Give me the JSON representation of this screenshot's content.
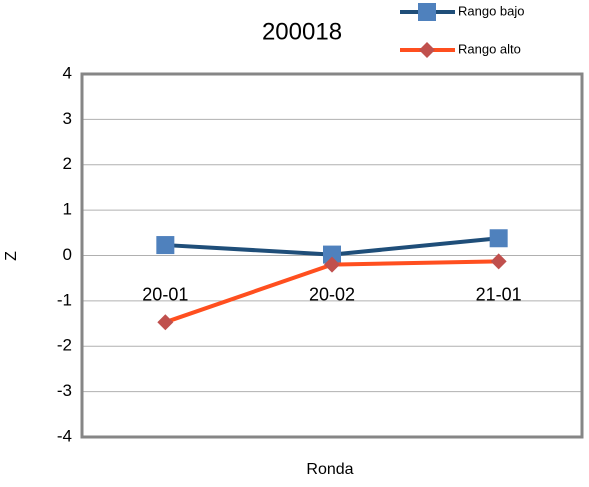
{
  "chart_data": {
    "type": "line",
    "title": "200018",
    "x_label": "Ronda",
    "y_label": "Z",
    "categories": [
      "20-01",
      "20-02",
      "21-01"
    ],
    "series": [
      {
        "name": "Rango bajo",
        "color": "#1f4e79",
        "marker_color": "#4f81bd",
        "marker": "square",
        "values": [
          0.23,
          0.02,
          0.38
        ]
      },
      {
        "name": "Rango alto",
        "color": "#ff4f1f",
        "marker_color": "#c0504d",
        "marker": "diamond",
        "values": [
          -1.47,
          -0.2,
          -0.13
        ]
      }
    ],
    "ylim": [
      -4,
      4
    ],
    "yticks": [
      -4,
      -3,
      -2,
      -1,
      0,
      1,
      2,
      3,
      4
    ],
    "grid": true,
    "legend": "top-right"
  }
}
